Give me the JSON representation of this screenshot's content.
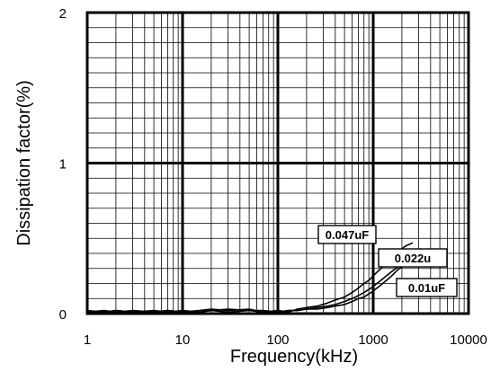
{
  "chart_data": {
    "type": "line",
    "title": "",
    "xlabel": "Frequency(kHz)",
    "ylabel": "Dissipation factor(%)",
    "x_scale": "log",
    "xlim": [
      1,
      10000
    ],
    "ylim": [
      0,
      2
    ],
    "x_ticks": [
      {
        "value": 1,
        "label": "1"
      },
      {
        "value": 10,
        "label": "10"
      },
      {
        "value": 100,
        "label": "100"
      },
      {
        "value": 1000,
        "label": "1000"
      },
      {
        "value": 10000,
        "label": "10000"
      }
    ],
    "y_ticks": [
      {
        "value": 0,
        "label": "0"
      },
      {
        "value": 1,
        "label": "1"
      },
      {
        "value": 2,
        "label": "2"
      }
    ],
    "grid": true,
    "line_color": "#000000",
    "series": [
      {
        "name": "0.047uF",
        "x": [
          1,
          1.5,
          2,
          3,
          5,
          7,
          10,
          15,
          20,
          30,
          50,
          70,
          100,
          130,
          160,
          200,
          260,
          330,
          400,
          500,
          600,
          700,
          800,
          900,
          1000,
          1200,
          1500,
          1800,
          2200,
          2600
        ],
        "y": [
          0.01,
          0.02,
          0.01,
          0.02,
          0.01,
          0.02,
          0.01,
          0.02,
          0.03,
          0.02,
          0.03,
          0.01,
          0.02,
          0.01,
          0.03,
          0.04,
          0.05,
          0.07,
          0.09,
          0.11,
          0.14,
          0.17,
          0.2,
          0.22,
          0.25,
          0.3,
          0.36,
          0.41,
          0.45,
          0.47
        ]
      },
      {
        "name": "0.022u",
        "x": [
          1,
          1.5,
          2,
          3,
          5,
          7,
          10,
          15,
          20,
          30,
          50,
          70,
          100,
          130,
          160,
          200,
          260,
          330,
          400,
          500,
          600,
          700,
          800,
          900,
          1000,
          1200,
          1500,
          1800,
          2200,
          2600
        ],
        "y": [
          0.02,
          0.01,
          0.02,
          0.01,
          0.02,
          0.01,
          0.02,
          0.01,
          0.02,
          0.03,
          0.02,
          0.02,
          0.01,
          0.02,
          0.02,
          0.03,
          0.04,
          0.05,
          0.06,
          0.08,
          0.1,
          0.12,
          0.14,
          0.16,
          0.18,
          0.22,
          0.27,
          0.31,
          0.35,
          0.38
        ]
      },
      {
        "name": "0.01uF",
        "x": [
          1,
          1.5,
          2,
          3,
          5,
          7,
          10,
          15,
          20,
          30,
          50,
          70,
          100,
          130,
          160,
          200,
          260,
          330,
          400,
          500,
          600,
          700,
          800,
          900,
          1000,
          1200,
          1500,
          1800,
          2200
        ],
        "y": [
          0.01,
          0.01,
          0.02,
          0.01,
          0.01,
          0.02,
          0.01,
          0.01,
          0.02,
          0.01,
          0.02,
          0.01,
          0.01,
          0.02,
          0.02,
          0.03,
          0.03,
          0.04,
          0.05,
          0.06,
          0.08,
          0.1,
          0.11,
          0.13,
          0.15,
          0.19,
          0.24,
          0.29,
          0.33
        ]
      }
    ],
    "annotations": [
      {
        "text": "0.047uF",
        "series": "0.047uF"
      },
      {
        "text": "0.022u",
        "series": "0.022u"
      },
      {
        "text": "0.01uF",
        "series": "0.01uF"
      }
    ]
  }
}
